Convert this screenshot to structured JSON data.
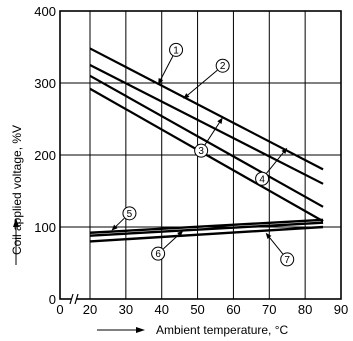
{
  "chart_data": {
    "type": "line",
    "xlabel": "Ambient temperature, °C",
    "ylabel": "Coil applied voltage, %V",
    "xlim": [
      20,
      90
    ],
    "ylim": [
      0,
      400
    ],
    "x_axis_break": true,
    "x_tick_labels": [
      "0",
      "20",
      "30",
      "40",
      "50",
      "60",
      "70",
      "80",
      "90"
    ],
    "x_ticks": [
      20,
      30,
      40,
      50,
      60,
      70,
      80,
      90
    ],
    "y_ticks": [
      0,
      100,
      200,
      300,
      400
    ],
    "y_tick_labels": [
      "0",
      "100",
      "200",
      "300",
      "400"
    ],
    "grid": true,
    "series": [
      {
        "marker": "①",
        "x": [
          20,
          85
        ],
        "y": [
          348,
          180
        ],
        "label_at": [
          44,
          346
        ],
        "arrow_to": [
          39,
          298
        ]
      },
      {
        "marker": "②",
        "x": [
          20,
          85
        ],
        "y": [
          325,
          160
        ],
        "label_at": [
          57,
          324
        ],
        "arrow_to": [
          46,
          278
        ]
      },
      {
        "marker": "③",
        "x": [
          20,
          85
        ],
        "y": [
          310,
          128
        ],
        "label_at": [
          51,
          206
        ],
        "arrow_to": [
          57,
          252
        ]
      },
      {
        "marker": "④",
        "x": [
          20,
          85
        ],
        "y": [
          292,
          108
        ],
        "label_at": [
          68,
          167
        ],
        "arrow_to": [
          75,
          210
        ]
      },
      {
        "marker": "⑤",
        "x": [
          20,
          85
        ],
        "y": [
          92,
          110
        ],
        "label_at": [
          31,
          119
        ],
        "arrow_to": [
          26,
          95
        ]
      },
      {
        "marker": "⑥",
        "x": [
          20,
          85
        ],
        "y": [
          88,
          106
        ],
        "label_at": [
          39,
          63
        ],
        "arrow_to": [
          46,
          95
        ]
      },
      {
        "marker": "⑦",
        "x": [
          20,
          85
        ],
        "y": [
          80,
          100
        ],
        "label_at": [
          75,
          55
        ],
        "arrow_to": [
          69,
          92
        ]
      }
    ]
  }
}
